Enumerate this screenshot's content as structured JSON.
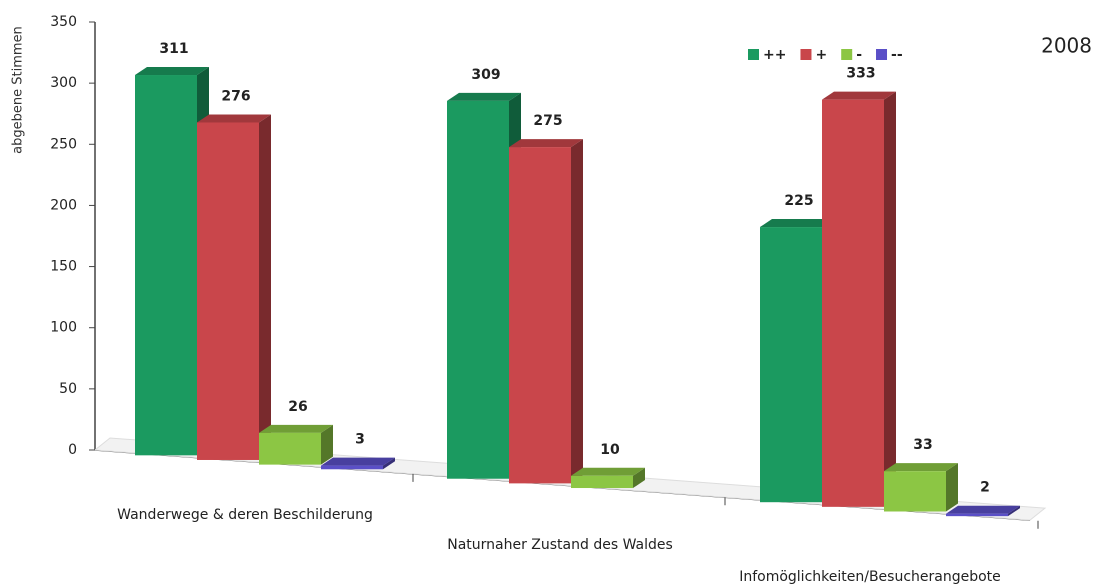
{
  "chart_data": {
    "type": "bar3d",
    "y_axis_label": "abgebene Stimmen",
    "annotation": "2008",
    "categories": [
      "Wanderwege & deren Beschilderung",
      "Naturnaher Zustand des Waldes",
      "Infomöglichkeiten/Besucherangebote"
    ],
    "series": [
      {
        "name": "++",
        "color": "#1b9a60",
        "values": [
          311,
          309,
          225
        ]
      },
      {
        "name": "+",
        "color": "#c9464b",
        "values": [
          276,
          275,
          333
        ]
      },
      {
        "name": "-",
        "color": "#8cc644",
        "values": [
          26,
          10,
          33
        ]
      },
      {
        "name": "--",
        "color": "#5a4fc7",
        "values": [
          3,
          null,
          2
        ]
      }
    ],
    "ylim": [
      0,
      350
    ],
    "yticks": [
      0,
      50,
      100,
      150,
      200,
      250,
      300,
      350
    ],
    "legend": "top-right"
  }
}
